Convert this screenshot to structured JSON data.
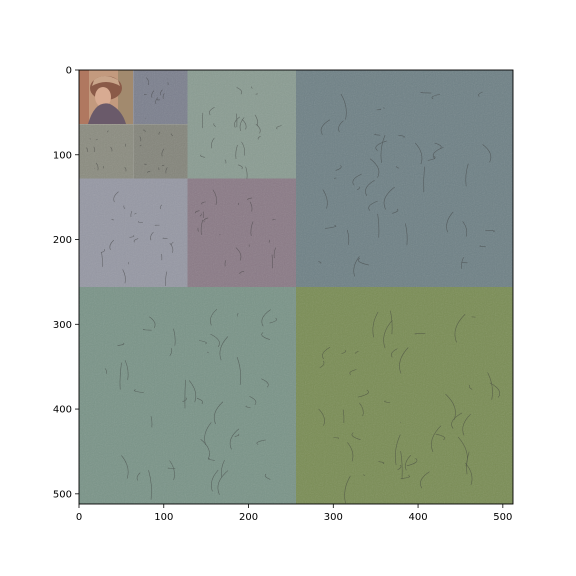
{
  "figure": {
    "type": "image",
    "description_colors": {
      "axes_frame": "#000000",
      "background": "#ffffff"
    },
    "axes": {
      "x": {
        "range": [
          0,
          512
        ],
        "ticks": [
          0,
          100,
          200,
          300,
          400,
          500
        ],
        "tick_labels": [
          "0",
          "100",
          "200",
          "300",
          "400",
          "500"
        ]
      },
      "y": {
        "range": [
          0,
          512
        ],
        "inverted": true,
        "ticks": [
          0,
          100,
          200,
          300,
          400,
          500
        ],
        "tick_labels": [
          "0",
          "100",
          "200",
          "300",
          "400",
          "500"
        ]
      }
    },
    "panels": [
      {
        "name": "approximation-photo",
        "x0": 0,
        "y0": 0,
        "size": 64,
        "fill": "#a08a7a"
      },
      {
        "name": "level3-horizontal",
        "x0": 64,
        "y0": 0,
        "size": 64,
        "fill": "#7c808e"
      },
      {
        "name": "level3-vertical",
        "x0": 0,
        "y0": 64,
        "size": 64,
        "fill": "#8b8c80"
      },
      {
        "name": "level3-diagonal",
        "x0": 64,
        "y0": 64,
        "size": 64,
        "fill": "#84857b"
      },
      {
        "name": "level2-horizontal",
        "x0": 128,
        "y0": 0,
        "size": 128,
        "fill": "#8a9c92"
      },
      {
        "name": "level2-vertical",
        "x0": 0,
        "y0": 128,
        "size": 128,
        "fill": "#9698a4"
      },
      {
        "name": "level2-diagonal",
        "x0": 128,
        "y0": 128,
        "size": 128,
        "fill": "#8a7a86"
      },
      {
        "name": "level1-horizontal",
        "x0": 256,
        "y0": 0,
        "size": 256,
        "fill": "#6f8186"
      },
      {
        "name": "level1-vertical",
        "x0": 0,
        "y0": 256,
        "size": 256,
        "fill": "#7a9488"
      },
      {
        "name": "level1-diagonal",
        "x0": 256,
        "y0": 256,
        "size": 256,
        "fill": "#7a8d55"
      }
    ]
  }
}
